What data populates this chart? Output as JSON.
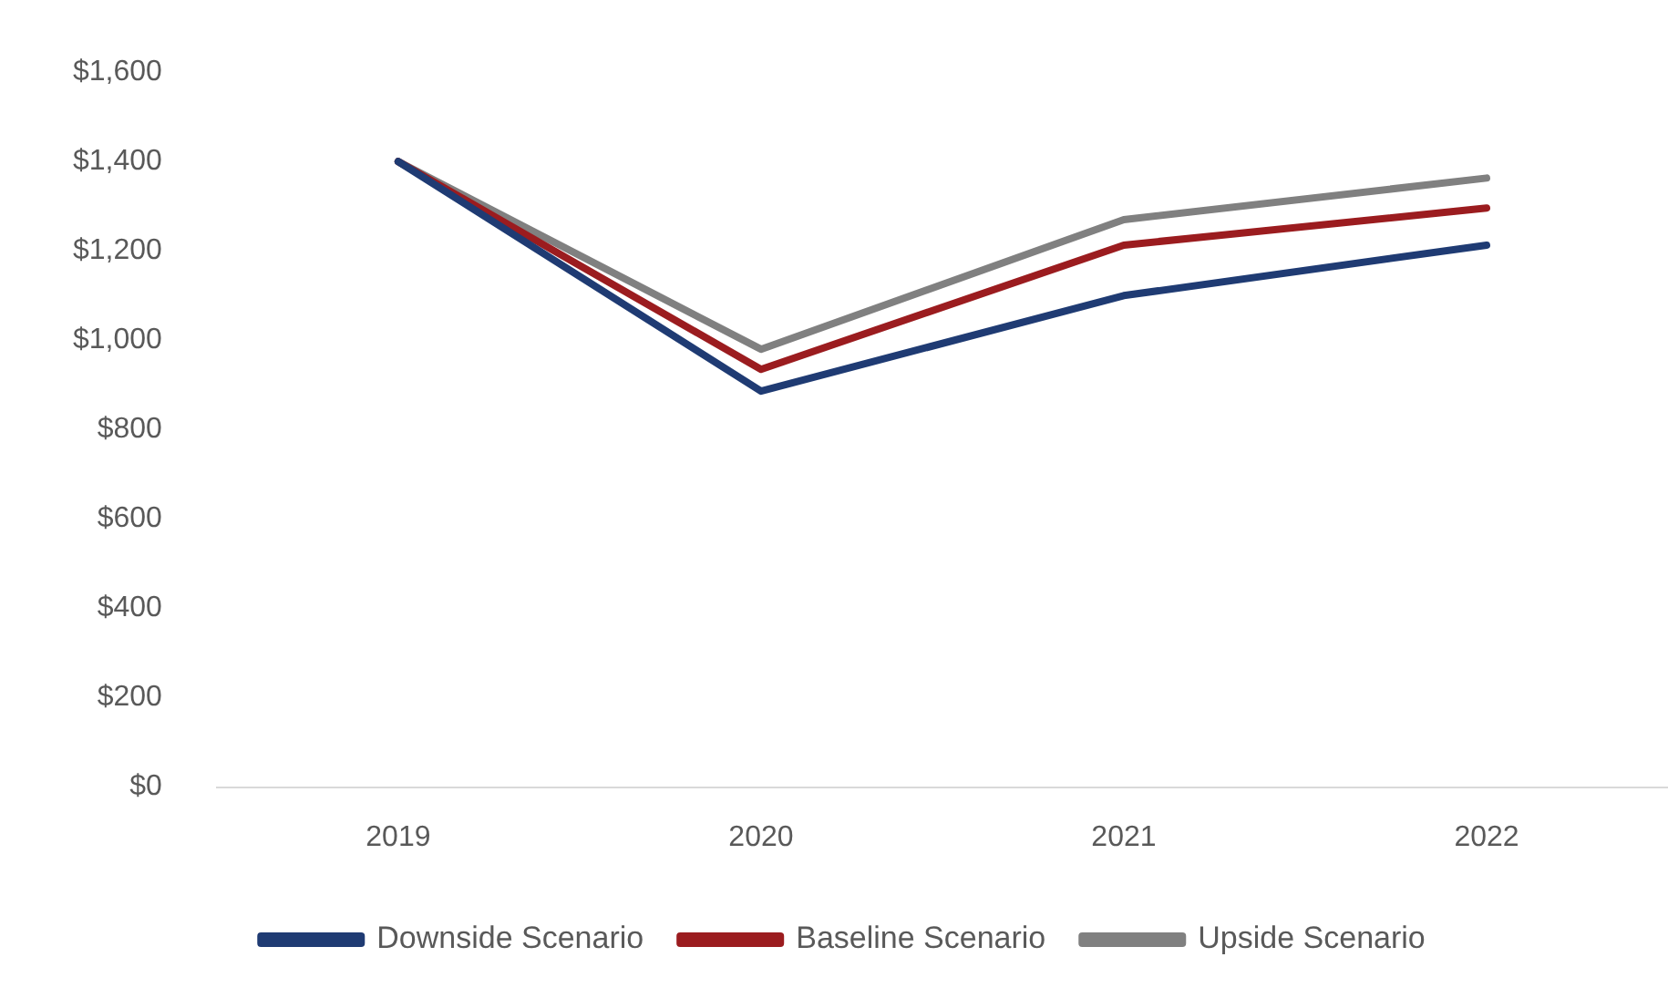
{
  "chart_data": {
    "type": "line",
    "categories": [
      "2019",
      "2020",
      "2021",
      "2022"
    ],
    "series": [
      {
        "name": "Downside Scenario",
        "color": "#1f3b73",
        "values": [
          1400,
          886,
          1100,
          1213
        ]
      },
      {
        "name": "Baseline Scenario",
        "color": "#9b1c1f",
        "values": [
          1400,
          935,
          1213,
          1296
        ]
      },
      {
        "name": "Upside Scenario",
        "color": "#808080",
        "values": [
          1400,
          980,
          1270,
          1363
        ]
      }
    ],
    "ylim": [
      0,
      1600
    ],
    "yticks": [
      {
        "value": 0,
        "label": "$0"
      },
      {
        "value": 200,
        "label": "$200"
      },
      {
        "value": 400,
        "label": "$400"
      },
      {
        "value": 600,
        "label": "$600"
      },
      {
        "value": 800,
        "label": "$800"
      },
      {
        "value": 1000,
        "label": "$1,000"
      },
      {
        "value": 1200,
        "label": "$1,200"
      },
      {
        "value": 1400,
        "label": "$1,400"
      },
      {
        "value": 1600,
        "label": "$1,600"
      }
    ],
    "grid": false,
    "legend": "bottom",
    "marker": "none",
    "line_style": "solid"
  }
}
